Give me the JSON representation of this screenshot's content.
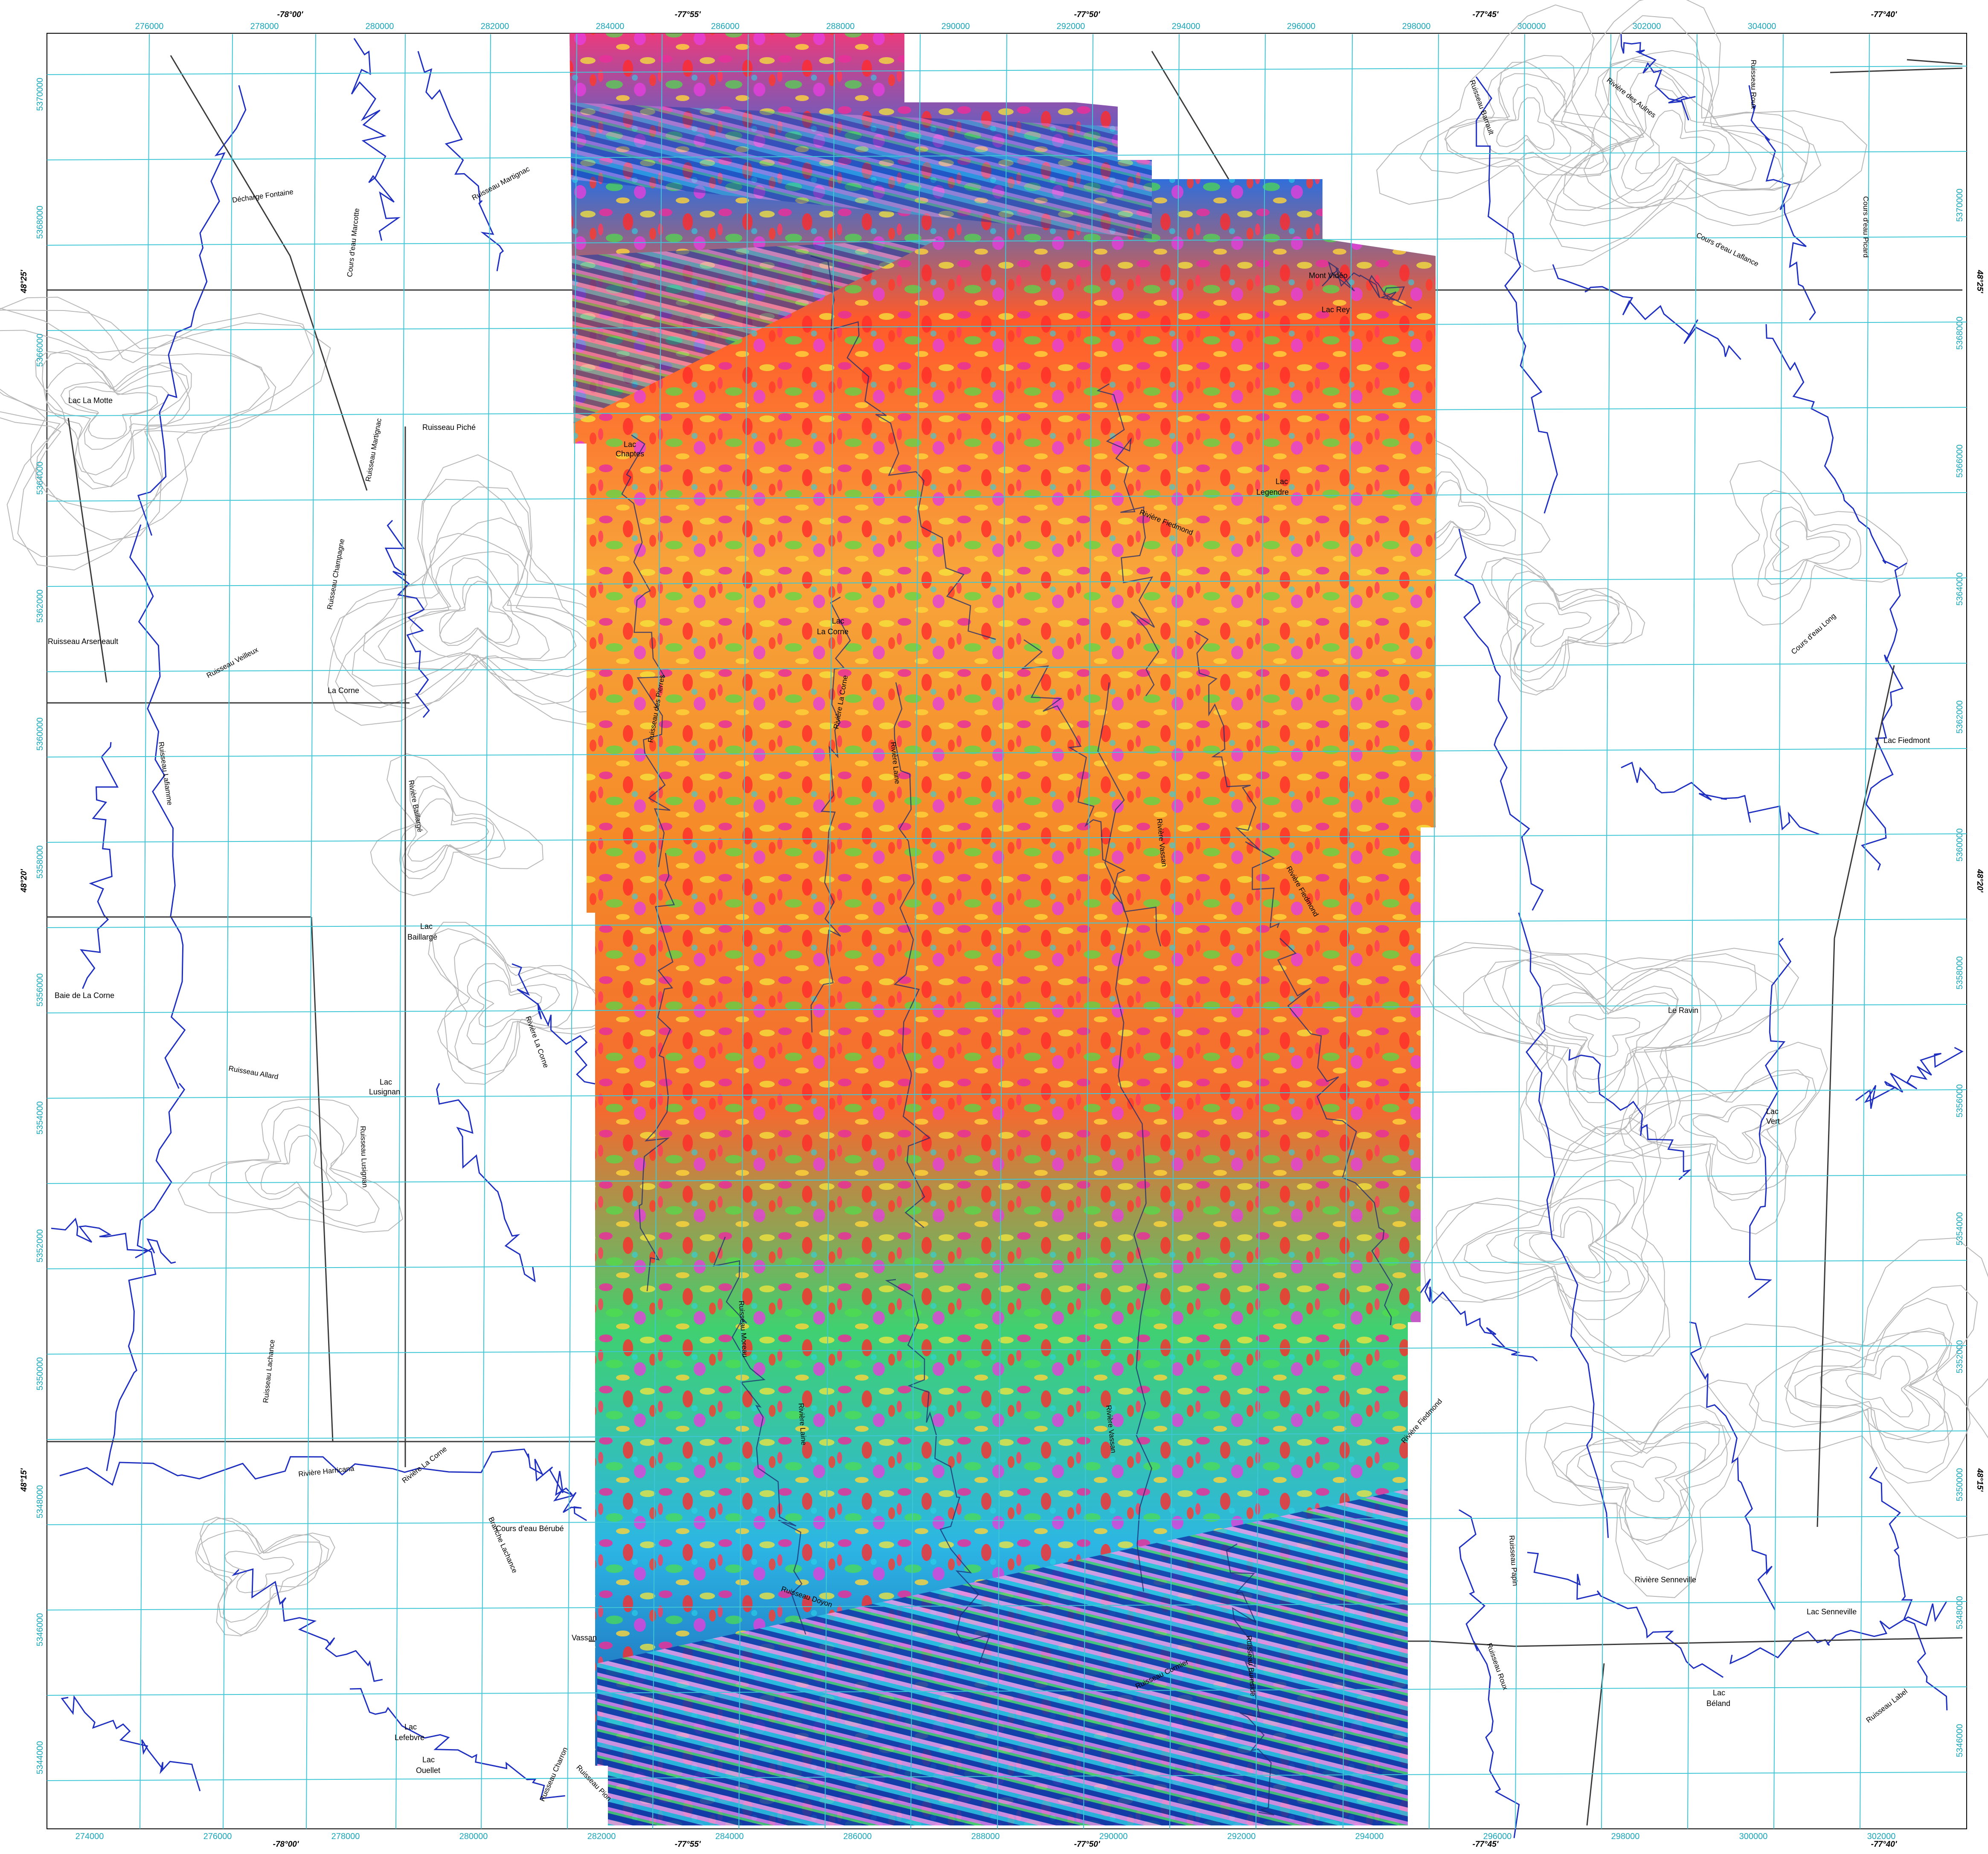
{
  "map": {
    "easting_ticks_top": [
      "276000",
      "278000",
      "280000",
      "282000",
      "284000",
      "286000",
      "288000",
      "290000",
      "292000",
      "294000",
      "296000",
      "298000",
      "300000",
      "302000",
      "304000"
    ],
    "easting_ticks_bottom": [
      "274000",
      "276000",
      "278000",
      "280000",
      "282000",
      "284000",
      "286000",
      "288000",
      "290000",
      "292000",
      "294000",
      "296000",
      "298000",
      "300000",
      "302000"
    ],
    "northing_ticks": [
      "5370000",
      "5368000",
      "5366000",
      "5364000",
      "5362000",
      "5360000",
      "5358000",
      "5356000",
      "5354000",
      "5352000",
      "5350000",
      "5348000",
      "5346000",
      "5344000"
    ],
    "longitude_labels_top": [
      "-78°00'",
      "-77°55'",
      "-77°50'",
      "-77°45'",
      "-77°40'"
    ],
    "longitude_labels_bottom": [
      "-78°00'",
      "-77°55'",
      "-77°50'",
      "-77°45'",
      "-77°40'"
    ],
    "latitude_labels": [
      "48°25'",
      "48°20'",
      "48°15'"
    ],
    "places": [
      {
        "id": "lac-la-motte",
        "text": "Lac La Motte"
      },
      {
        "id": "decharge-fontaine",
        "text": "Décharge Fontaine"
      },
      {
        "id": "ruisseau-martignac-top",
        "text": "Ruisseau Martignac"
      },
      {
        "id": "cours-marcotte",
        "text": "Cours d'eau Marcotte"
      },
      {
        "id": "ruisseau-barrault",
        "text": "Ruisseau Barrault"
      },
      {
        "id": "riviere-des-aulnes",
        "text": "Rivière des Aulnes"
      },
      {
        "id": "ruisseau-roux",
        "text": "Ruisseau Roux"
      },
      {
        "id": "cours-picard",
        "text": "Cours d'eau Picard"
      },
      {
        "id": "cours-laflance",
        "text": "Cours d'eau Laflance"
      },
      {
        "id": "mont-video",
        "text": "Mont Vidéo"
      },
      {
        "id": "lac-rey",
        "text": "Lac Rey"
      },
      {
        "id": "ruisseau-piche",
        "text": "Ruisseau Piché"
      },
      {
        "id": "ruisseau-martignac",
        "text": "Ruisseau Martignac"
      },
      {
        "id": "lac-chaptes-1",
        "text": "Lac"
      },
      {
        "id": "lac-chaptes-2",
        "text": "Chaptes"
      },
      {
        "id": "ruisseau-champagne",
        "text": "Ruisseau Champagne"
      },
      {
        "id": "lac-legendre-1",
        "text": "Lac"
      },
      {
        "id": "lac-legendre-2",
        "text": "Legendre"
      },
      {
        "id": "riviere-fiedmond-top",
        "text": "Rivière Fiedmond"
      },
      {
        "id": "ruisseau-arseneault",
        "text": "Ruisseau Arseneault"
      },
      {
        "id": "ruisseau-veilleux",
        "text": "Ruisseau Veilleux"
      },
      {
        "id": "la-corne",
        "text": "La Corne"
      },
      {
        "id": "lac-la-corne-1",
        "text": "Lac"
      },
      {
        "id": "lac-la-corne-2",
        "text": "La Corne"
      },
      {
        "id": "ruisseau-des-pierres",
        "text": "Ruisseau des Pierres"
      },
      {
        "id": "riviere-la-corne-mid",
        "text": "Rivière La Corne"
      },
      {
        "id": "riviere-laine",
        "text": "Rivière Laine"
      },
      {
        "id": "cours-long",
        "text": "Cours d'eau Long"
      },
      {
        "id": "lac-fiedmont",
        "text": "Lac Fiedmont"
      },
      {
        "id": "ruisseau-lafiamme",
        "text": "Ruisseau Lafiamme"
      },
      {
        "id": "riviere-bailargé",
        "text": "Rivière Baillargé"
      },
      {
        "id": "riviere-vassan-mid",
        "text": "Rivière Vassan"
      },
      {
        "id": "riviere-fiedmond-mid",
        "text": "Rivière Fiedmond"
      },
      {
        "id": "lac-baillarge-1",
        "text": "Lac"
      },
      {
        "id": "lac-baillarge-2",
        "text": "Baillargé"
      },
      {
        "id": "baie-de-la-corne",
        "text": "Baie de La Corne"
      },
      {
        "id": "riviere-la-corne-left",
        "text": "Rivière La Corne"
      },
      {
        "id": "ruisseau-allard",
        "text": "Ruisseau Allard"
      },
      {
        "id": "lac-lusignan-1",
        "text": "Lac"
      },
      {
        "id": "lac-lusignan-2",
        "text": "Lusignan"
      },
      {
        "id": "ruisseau-lusignan",
        "text": "Ruisseau Lusignan"
      },
      {
        "id": "le-ravin",
        "text": "Le Ravin"
      },
      {
        "id": "lac-vert-1",
        "text": "Lac"
      },
      {
        "id": "lac-vert-2",
        "text": "Vert"
      },
      {
        "id": "ruisseau-lachance",
        "text": "Ruisseau Lachance"
      },
      {
        "id": "ruisseau-moreau",
        "text": "Ruisseau Moreau"
      },
      {
        "id": "riviere-laine-low",
        "text": "Rivière Laine"
      },
      {
        "id": "riviere-vassan-low",
        "text": "Rivière Vassan"
      },
      {
        "id": "riviere-fiedmond-low",
        "text": "Rivière Fiedmond"
      },
      {
        "id": "riviere-harricana",
        "text": "Rivière Harricana"
      },
      {
        "id": "riviere-la-corne-low",
        "text": "Rivière La Corne"
      },
      {
        "id": "cours-berube",
        "text": "Cours d'eau Bérubé"
      },
      {
        "id": "branche-lachance",
        "text": "Branche Lachance"
      },
      {
        "id": "ruisseau-doyon",
        "text": "Ruisseau Doyon"
      },
      {
        "id": "ruisseau-papin",
        "text": "Ruisseau Papin"
      },
      {
        "id": "riviere-senneville",
        "text": "Rivière Senneville"
      },
      {
        "id": "lac-senneville",
        "text": "Lac Senneville"
      },
      {
        "id": "vassan",
        "text": "Vassan"
      },
      {
        "id": "ruisseau-cormier",
        "text": "Ruisseau Cormier"
      },
      {
        "id": "ruisseau-burnside",
        "text": "Ruisseau Burnside"
      },
      {
        "id": "ruisseau-roux-low",
        "text": "Ruisseau Roux"
      },
      {
        "id": "lac-beland-1",
        "text": "Lac"
      },
      {
        "id": "lac-beland-2",
        "text": "Béland"
      },
      {
        "id": "ruisseau-label",
        "text": "Ruisseau Label"
      },
      {
        "id": "lac-lefebvre-1",
        "text": "Lac"
      },
      {
        "id": "lac-lefebvre-2",
        "text": "Lefebvre"
      },
      {
        "id": "lac-ouellet-1",
        "text": "Lac"
      },
      {
        "id": "lac-ouellet-2",
        "text": "Ouellet"
      },
      {
        "id": "ruisseau-charron",
        "text": "Ruisseau Charron"
      },
      {
        "id": "ruisseau-pion",
        "text": "Ruisseau Pion"
      }
    ],
    "colors": {
      "grid": "#3fc6d6",
      "water": "#1f2fc0",
      "contour": "#b4b4b4",
      "road": "#3a3a3a",
      "coord_text": "#1aa6b8",
      "mag_low": "#123aa8",
      "mag_mid_low": "#22c3e0",
      "mag_mid": "#4fdc4a",
      "mag_mid_high": "#f5d23a",
      "mag_high": "#f0342c",
      "mag_peak": "#e83ee0"
    }
  }
}
